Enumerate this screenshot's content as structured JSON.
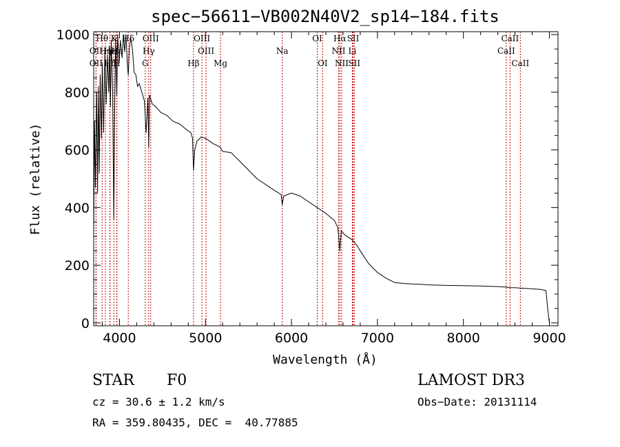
{
  "chart_data": {
    "type": "line",
    "title": "spec−56611−VB002N40V2_sp14−184.fits",
    "xlabel": "Wavelength (Å)",
    "ylabel": "Flux (relative)",
    "xlim": [
      3700,
      9100
    ],
    "ylim": [
      -10,
      1010
    ],
    "xticks": [
      4000,
      5000,
      6000,
      7000,
      8000,
      9000
    ],
    "yticks": [
      0,
      200,
      400,
      600,
      800,
      1000
    ],
    "grid": false,
    "series": [
      {
        "name": "spectrum",
        "x": [
          3700,
          3710,
          3720,
          3735,
          3745,
          3755,
          3765,
          3775,
          3790,
          3800,
          3815,
          3830,
          3845,
          3860,
          3875,
          3885,
          3895,
          3905,
          3920,
          3934,
          3945,
          3955,
          3968,
          3980,
          3995,
          4010,
          4030,
          4045,
          4060,
          4075,
          4090,
          4102,
          4115,
          4130,
          4150,
          4170,
          4190,
          4210,
          4230,
          4260,
          4290,
          4310,
          4330,
          4340,
          4350,
          4360,
          4380,
          4420,
          4480,
          4550,
          4620,
          4700,
          4780,
          4830,
          4850,
          4861,
          4875,
          4900,
          4950,
          5000,
          5100,
          5170,
          5200,
          5300,
          5400,
          5500,
          5600,
          5700,
          5800,
          5880,
          5893,
          5910,
          6000,
          6100,
          6200,
          6300,
          6400,
          6500,
          6540,
          6563,
          6580,
          6620,
          6700,
          6760,
          6800,
          6900,
          7000,
          7100,
          7200,
          7300,
          7400,
          7500,
          7600,
          7800,
          8000,
          8200,
          8400,
          8498,
          8542,
          8600,
          8662,
          8800,
          8900,
          8960,
          8980,
          9000
        ],
        "y": [
          300,
          700,
          470,
          800,
          450,
          820,
          520,
          860,
          640,
          900,
          660,
          940,
          760,
          930,
          800,
          960,
          750,
          980,
          800,
          360,
          760,
          990,
          790,
          1000,
          900,
          980,
          920,
          1000,
          940,
          1000,
          900,
          860,
          950,
          990,
          950,
          870,
          860,
          820,
          830,
          800,
          770,
          660,
          780,
          610,
          790,
          780,
          760,
          750,
          730,
          720,
          700,
          690,
          670,
          660,
          640,
          530,
          600,
          630,
          645,
          640,
          620,
          610,
          595,
          590,
          560,
          530,
          500,
          480,
          460,
          445,
          410,
          440,
          450,
          440,
          420,
          400,
          380,
          355,
          330,
          250,
          320,
          305,
          290,
          270,
          250,
          205,
          175,
          155,
          140,
          137,
          135,
          134,
          132,
          130,
          129,
          128,
          126,
          124,
          122,
          122,
          121,
          118,
          116,
          112,
          50,
          0
        ]
      }
    ],
    "spectral_lines": [
      {
        "name": "Hθ",
        "x": 3798,
        "row": 1
      },
      {
        "name": "OII",
        "x": 3727,
        "row": 2
      },
      {
        "name": "OII",
        "x": 3727,
        "row": 3
      },
      {
        "name": "Hη",
        "x": 3836,
        "row": 2
      },
      {
        "name": "K",
        "x": 3934,
        "row": 1
      },
      {
        "name": "He",
        "x": 3889,
        "row": 2
      },
      {
        "name": "H",
        "x": 3968,
        "row": 3
      },
      {
        "name": "Hζ",
        "x": 3889,
        "row": 3
      },
      {
        "name": "Hε",
        "x": 3970,
        "row": 2
      },
      {
        "name": "Hδ",
        "x": 4102,
        "row": 1
      },
      {
        "name": "OIII",
        "x": 4363,
        "row": 1
      },
      {
        "name": "Hγ",
        "x": 4340,
        "row": 2
      },
      {
        "name": "G",
        "x": 4300,
        "row": 3
      },
      {
        "name": "Hβ",
        "x": 4861,
        "row": 3
      },
      {
        "name": "OIII",
        "x": 4959,
        "row": 1
      },
      {
        "name": "OIII",
        "x": 5007,
        "row": 2
      },
      {
        "name": "Mg",
        "x": 5175,
        "row": 3
      },
      {
        "name": "Na",
        "x": 5893,
        "row": 2
      },
      {
        "name": "OI",
        "x": 6300,
        "row": 1
      },
      {
        "name": "OI",
        "x": 6363,
        "row": 3
      },
      {
        "name": "Hα",
        "x": 6563,
        "row": 1
      },
      {
        "name": "NII",
        "x": 6548,
        "row": 2
      },
      {
        "name": "NII",
        "x": 6584,
        "row": 3
      },
      {
        "name": "SII",
        "x": 6717,
        "row": 1
      },
      {
        "name": "Li",
        "x": 6708,
        "row": 2
      },
      {
        "name": "SII",
        "x": 6731,
        "row": 3
      },
      {
        "name": "CaII",
        "x": 8542,
        "row": 1
      },
      {
        "name": "CaII",
        "x": 8498,
        "row": 2
      },
      {
        "name": "CaII",
        "x": 8662,
        "row": 3
      }
    ]
  },
  "info": {
    "class_label": "STAR",
    "subclass_label": "F0",
    "survey_label": "LAMOST DR3",
    "redshift_text": "cz = 30.6 ± 1.2 km/s",
    "obs_date_text": "Obs−Date: 20131114",
    "coords_text": "RA = 359.80435, DEC =  40.77885"
  },
  "colors": {
    "spectrum": "#000000",
    "line_marker": "#c00000",
    "axes": "#000000"
  }
}
